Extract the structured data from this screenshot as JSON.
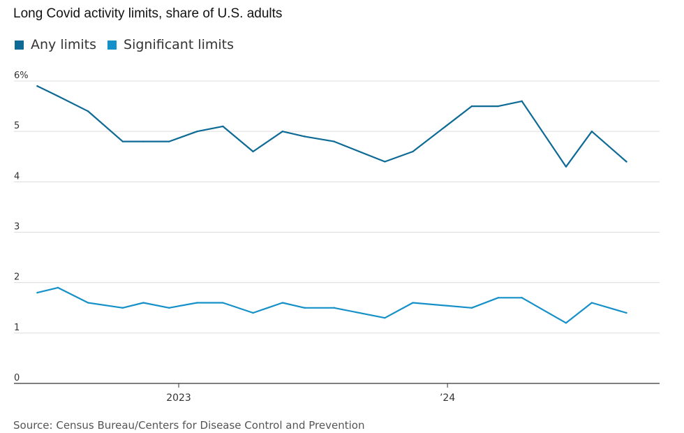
{
  "chart_data": {
    "type": "line",
    "title": "Long Covid activity limits, share of U.S. adults",
    "source": "Source: Census Bureau/Centers for Disease Control and Prevention",
    "ylim": [
      0,
      6
    ],
    "y_ticks": [
      {
        "value": 6,
        "label": "6%"
      },
      {
        "value": 5,
        "label": "5"
      },
      {
        "value": 4,
        "label": "4"
      },
      {
        "value": 3,
        "label": "3"
      },
      {
        "value": 2,
        "label": "2"
      },
      {
        "value": 1,
        "label": "1"
      },
      {
        "value": 0,
        "label": "0"
      }
    ],
    "x_range": [
      "2022-06-15",
      "2024-10-15"
    ],
    "x_ticks": [
      {
        "date": "2023-01-01",
        "label": "2023"
      },
      {
        "date": "2024-01-01",
        "label": "’24"
      }
    ],
    "grid": true,
    "legend_position": "top-left",
    "series": [
      {
        "name": "Any limits",
        "color": "#0d6a95",
        "points": [
          {
            "x": "2022-06-23",
            "y": 5.9
          },
          {
            "x": "2022-07-21",
            "y": 5.7
          },
          {
            "x": "2022-08-31",
            "y": 5.4
          },
          {
            "x": "2022-10-17",
            "y": 4.8
          },
          {
            "x": "2022-11-14",
            "y": 4.8
          },
          {
            "x": "2022-12-19",
            "y": 4.8
          },
          {
            "x": "2023-01-26",
            "y": 5.0
          },
          {
            "x": "2023-03-02",
            "y": 5.1
          },
          {
            "x": "2023-04-12",
            "y": 4.6
          },
          {
            "x": "2023-05-22",
            "y": 5.0
          },
          {
            "x": "2023-06-21",
            "y": 4.9
          },
          {
            "x": "2023-07-31",
            "y": 4.8
          },
          {
            "x": "2023-10-08",
            "y": 4.4
          },
          {
            "x": "2023-11-15",
            "y": 4.6
          },
          {
            "x": "2024-02-03",
            "y": 5.5
          },
          {
            "x": "2024-03-10",
            "y": 5.5
          },
          {
            "x": "2024-04-11",
            "y": 5.6
          },
          {
            "x": "2024-06-10",
            "y": 4.3
          },
          {
            "x": "2024-07-15",
            "y": 5.0
          },
          {
            "x": "2024-08-31",
            "y": 4.4
          }
        ]
      },
      {
        "name": "Significant limits",
        "color": "#1590c8",
        "points": [
          {
            "x": "2022-06-23",
            "y": 1.8
          },
          {
            "x": "2022-07-21",
            "y": 1.9
          },
          {
            "x": "2022-08-31",
            "y": 1.6
          },
          {
            "x": "2022-10-17",
            "y": 1.5
          },
          {
            "x": "2022-11-14",
            "y": 1.6
          },
          {
            "x": "2022-12-19",
            "y": 1.5
          },
          {
            "x": "2023-01-26",
            "y": 1.6
          },
          {
            "x": "2023-03-02",
            "y": 1.6
          },
          {
            "x": "2023-04-12",
            "y": 1.4
          },
          {
            "x": "2023-05-22",
            "y": 1.6
          },
          {
            "x": "2023-06-21",
            "y": 1.5
          },
          {
            "x": "2023-07-31",
            "y": 1.5
          },
          {
            "x": "2023-10-08",
            "y": 1.3
          },
          {
            "x": "2023-11-15",
            "y": 1.6
          },
          {
            "x": "2024-02-03",
            "y": 1.5
          },
          {
            "x": "2024-03-10",
            "y": 1.7
          },
          {
            "x": "2024-04-11",
            "y": 1.7
          },
          {
            "x": "2024-06-10",
            "y": 1.2
          },
          {
            "x": "2024-07-15",
            "y": 1.6
          },
          {
            "x": "2024-08-31",
            "y": 1.4
          }
        ]
      }
    ]
  }
}
